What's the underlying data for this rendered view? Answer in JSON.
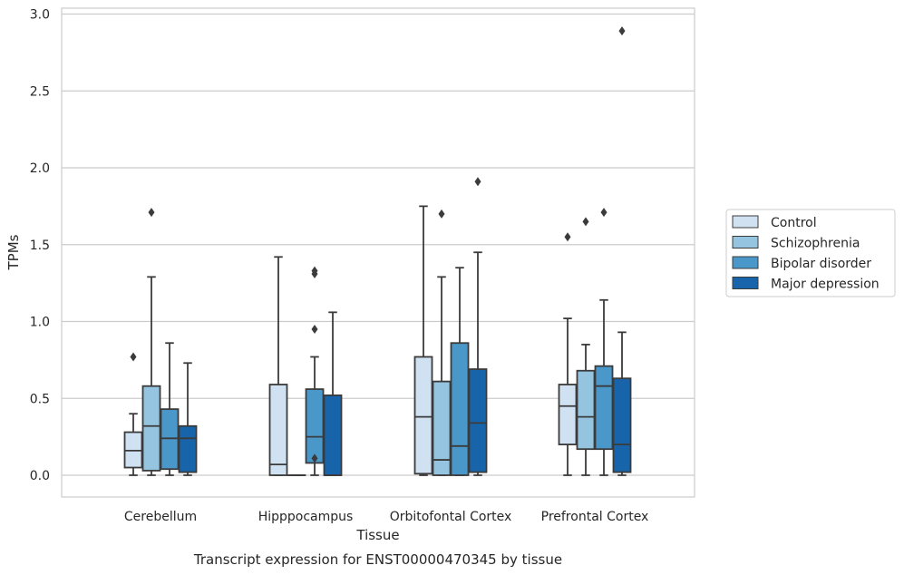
{
  "chart_data": {
    "type": "box",
    "title": "",
    "caption": "Transcript expression for ENST00000470345 by tissue",
    "xlabel": "Tissue",
    "ylabel": "TPMs",
    "ylim": [
      -0.14,
      3.04
    ],
    "yticks": [
      "0.0",
      "0.5",
      "1.0",
      "1.5",
      "2.0",
      "2.5",
      "3.0"
    ],
    "grid": "horizontal",
    "legend_position": "right",
    "categories": [
      "Cerebellum",
      "Hipppocampus",
      "Orbitofontal Cortex",
      "Prefrontal Cortex"
    ],
    "series": [
      {
        "name": "Control",
        "color": "#d0e1f2",
        "boxes": [
          {
            "min": 0.0,
            "q1": 0.05,
            "median": 0.16,
            "q3": 0.28,
            "max": 0.4,
            "outliers": [
              0.77
            ]
          },
          {
            "min": 0.0,
            "q1": 0.0,
            "median": 0.07,
            "q3": 0.59,
            "max": 1.42,
            "outliers": []
          },
          {
            "min": 0.0,
            "q1": 0.01,
            "median": 0.38,
            "q3": 0.77,
            "max": 1.75,
            "outliers": []
          },
          {
            "min": 0.0,
            "q1": 0.2,
            "median": 0.45,
            "q3": 0.59,
            "max": 1.02,
            "outliers": [
              1.55
            ]
          }
        ]
      },
      {
        "name": "Schizophrenia",
        "color": "#94c4df",
        "boxes": [
          {
            "min": 0.0,
            "q1": 0.03,
            "median": 0.32,
            "q3": 0.58,
            "max": 1.29,
            "outliers": [
              1.71
            ]
          },
          {
            "min": 0.0,
            "q1": 0.0,
            "median": 0.0,
            "q3": 0.0,
            "max": 0.0,
            "outliers": []
          },
          {
            "min": 0.0,
            "q1": 0.0,
            "median": 0.1,
            "q3": 0.61,
            "max": 1.29,
            "outliers": [
              1.7
            ]
          },
          {
            "min": 0.0,
            "q1": 0.17,
            "median": 0.38,
            "q3": 0.68,
            "max": 0.85,
            "outliers": [
              1.65
            ]
          }
        ]
      },
      {
        "name": "Bipolar disorder",
        "color": "#4a98c9",
        "boxes": [
          {
            "min": 0.0,
            "q1": 0.04,
            "median": 0.24,
            "q3": 0.43,
            "max": 0.86,
            "outliers": []
          },
          {
            "min": 0.0,
            "q1": 0.08,
            "median": 0.25,
            "q3": 0.56,
            "max": 0.77,
            "outliers": [
              0.11,
              0.95,
              1.31,
              1.33
            ]
          },
          {
            "min": 0.0,
            "q1": 0.0,
            "median": 0.19,
            "q3": 0.86,
            "max": 1.35,
            "outliers": []
          },
          {
            "min": 0.0,
            "q1": 0.17,
            "median": 0.58,
            "q3": 0.71,
            "max": 1.14,
            "outliers": [
              1.71
            ]
          }
        ]
      },
      {
        "name": "Major depression",
        "color": "#1764ab",
        "boxes": [
          {
            "min": 0.0,
            "q1": 0.02,
            "median": 0.24,
            "q3": 0.32,
            "max": 0.73,
            "outliers": []
          },
          {
            "min": 0.0,
            "q1": 0.0,
            "median": 0.0,
            "q3": 0.52,
            "max": 1.06,
            "outliers": []
          },
          {
            "min": 0.0,
            "q1": 0.02,
            "median": 0.34,
            "q3": 0.69,
            "max": 1.45,
            "outliers": [
              1.91
            ]
          },
          {
            "min": 0.0,
            "q1": 0.02,
            "median": 0.2,
            "q3": 0.63,
            "max": 0.93,
            "outliers": [
              2.89
            ]
          }
        ]
      }
    ]
  }
}
